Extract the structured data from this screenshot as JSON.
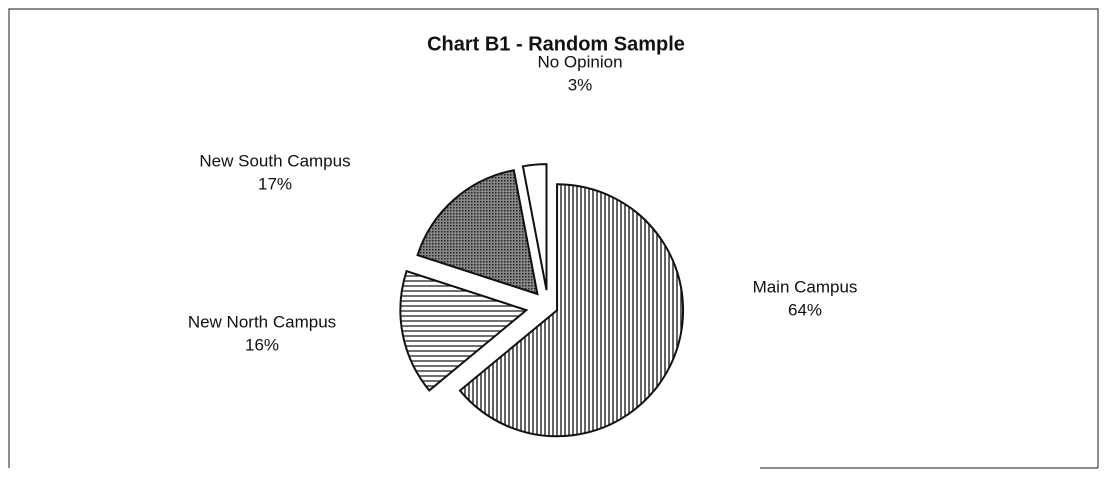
{
  "chart_data": {
    "type": "pie",
    "title": "Chart B1 - Random Sample",
    "categories": [
      "Main Campus",
      "New North Campus",
      "New South Campus",
      "No Opinion"
    ],
    "values": [
      64,
      16,
      17,
      3
    ],
    "value_labels": [
      "64%",
      "16%",
      "17%",
      "3%"
    ],
    "patterns": [
      "vertical",
      "horizontal",
      "dots",
      "none"
    ]
  }
}
